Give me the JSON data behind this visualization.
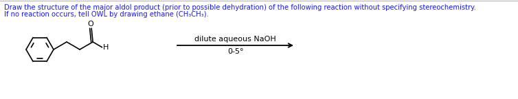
{
  "background_color": "#ffffff",
  "border_color": "#c0c0c0",
  "title_line1": "Draw the structure of the major aldol product (prior to possible dehydration) of the following reaction without specifying stereochemistry.",
  "title_line2": "If no reaction occurs, tell OWL by drawing ethane (CH₃CH₃).",
  "title_color": "#1a1aee",
  "title_fontsize": 7.2,
  "arrow_text_top": "dilute aqueous NaOH",
  "arrow_text_bottom": "0-5°",
  "arrow_color": "#000000",
  "arrow_text_color": "#000000",
  "arrow_text_fontsize": 8.0,
  "molecule_color": "#000000",
  "figure_width": 7.54,
  "figure_height": 1.44,
  "dpi": 100
}
